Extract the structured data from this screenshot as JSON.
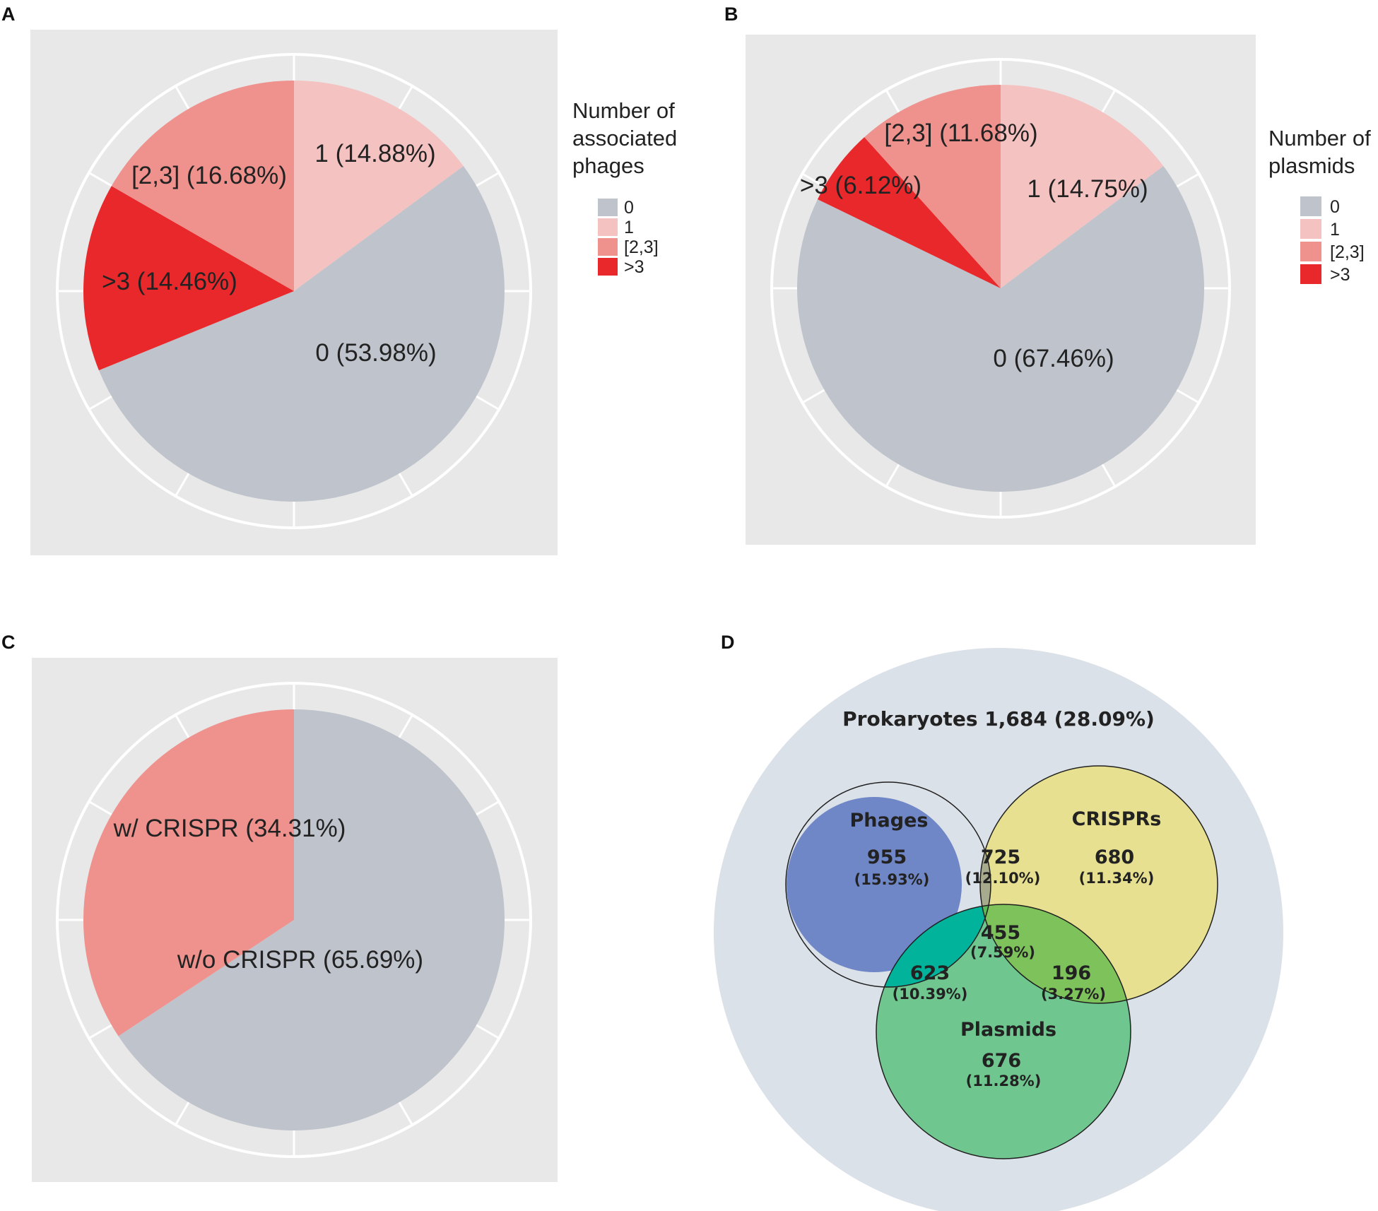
{
  "panels": {
    "a": "A",
    "b": "B",
    "c": "C",
    "d": "D"
  },
  "colors": {
    "panel_bg": "#e8e8e8",
    "ring": "#ffffff",
    "grey": "#bfc3cb",
    "light_pink": "#f4c3c1",
    "salmon": "#ef928e",
    "red": "#e9282b",
    "venn_bg": "#dbe1e8",
    "phages": "#6f86c7",
    "crisprs": "#e6e090",
    "plasmids": "#6fc68f",
    "phage_crispr": "#a7aa8c",
    "phage_plasmid": "#00b39a",
    "crispr_plasmid": "#7ec25c",
    "center": "#5dba58"
  },
  "chart_data": [
    {
      "type": "pie",
      "panel": "A",
      "legend_title": [
        "Number of",
        "associated",
        "phages"
      ],
      "categories": [
        "0",
        "1",
        "[2,3]",
        ">3"
      ],
      "values": [
        53.98,
        14.88,
        16.68,
        14.46
      ],
      "slice_labels": [
        "0 (53.98%)",
        "1 (14.88%)",
        "[2,3] (16.68%)",
        ">3 (14.46%)"
      ]
    },
    {
      "type": "pie",
      "panel": "B",
      "legend_title": [
        "Number of",
        "plasmids"
      ],
      "categories": [
        "0",
        "1",
        "[2,3]",
        ">3"
      ],
      "values": [
        67.46,
        14.75,
        11.68,
        6.12
      ],
      "slice_labels": [
        "0 (67.46%)",
        "1 (14.75%)",
        "[2,3] (11.68%)",
        ">3 (6.12%)"
      ]
    },
    {
      "type": "pie",
      "panel": "C",
      "categories": [
        "w/o CRISPR",
        "w/ CRISPR"
      ],
      "values": [
        65.69,
        34.31
      ],
      "slice_labels": [
        "w/o CRISPR (65.69%)",
        "w/ CRISPR (34.31%)"
      ]
    },
    {
      "type": "venn",
      "panel": "D",
      "title": "Prokaryotes 1,684 (28.09%)",
      "sets": [
        "Phages",
        "CRISPRs",
        "Plasmids"
      ],
      "regions": [
        {
          "sets": [
            "Phages"
          ],
          "count": "955",
          "percent": "(15.93%)"
        },
        {
          "sets": [
            "Phages",
            "CRISPRs"
          ],
          "count": "725",
          "percent": "(12.10%)"
        },
        {
          "sets": [
            "CRISPRs"
          ],
          "count": "680",
          "percent": "(11.34%)"
        },
        {
          "sets": [
            "Phages",
            "CRISPRs",
            "Plasmids"
          ],
          "count": "455",
          "percent": "(7.59%)"
        },
        {
          "sets": [
            "Phages",
            "Plasmids"
          ],
          "count": "623",
          "percent": "(10.39%)"
        },
        {
          "sets": [
            "CRISPRs",
            "Plasmids"
          ],
          "count": "196",
          "percent": "(3.27%)"
        },
        {
          "sets": [
            "Plasmids"
          ],
          "count": "676",
          "percent": "(11.28%)"
        }
      ]
    }
  ]
}
